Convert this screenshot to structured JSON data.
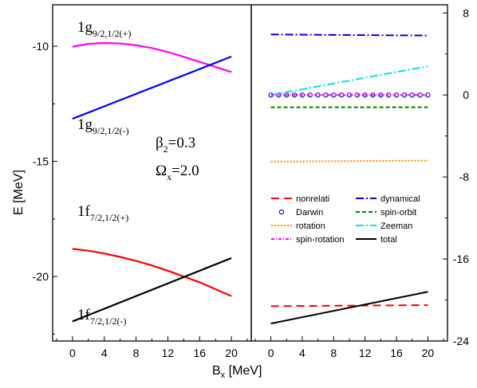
{
  "chart_data": [
    {
      "type": "line",
      "panel": "left",
      "xlabel": "B",
      "xlabel_sub": "x",
      "xlabel_unit": " [MeV]",
      "ylabel": "E [MeV]",
      "xlim": [
        -2.5,
        22.5
      ],
      "ylim": [
        -22.8,
        -8.2
      ],
      "xticks": [
        0,
        4,
        8,
        12,
        16,
        20
      ],
      "yticks": [
        -10,
        -15,
        -20
      ],
      "series": [
        {
          "key": "g_plus",
          "color": "#ff00ff",
          "x": [
            0,
            2,
            4,
            6,
            8,
            10,
            12,
            14,
            16,
            18,
            20
          ],
          "y": [
            -10.02,
            -9.9,
            -9.86,
            -9.88,
            -9.96,
            -10.08,
            -10.25,
            -10.46,
            -10.68,
            -10.9,
            -11.12
          ]
        },
        {
          "key": "g_minus",
          "color": "#0000ff",
          "x": [
            0,
            20
          ],
          "y": [
            -13.15,
            -10.45
          ]
        },
        {
          "key": "f_plus",
          "color": "#ff0000",
          "x": [
            0,
            2,
            4,
            6,
            8,
            10,
            12,
            14,
            16,
            18,
            20
          ],
          "y": [
            -18.8,
            -18.88,
            -19.0,
            -19.15,
            -19.32,
            -19.52,
            -19.75,
            -20.0,
            -20.25,
            -20.55,
            -20.85
          ]
        },
        {
          "key": "f_minus",
          "color": "#000000",
          "x": [
            0,
            20
          ],
          "y": [
            -21.95,
            -19.2
          ]
        }
      ],
      "annotations": {
        "g_plus": {
          "main": "1g",
          "sub": "9/2,1/2(+)"
        },
        "g_minus": {
          "main": "1g",
          "sub": "9/2,1/2(-)"
        },
        "f_plus": {
          "main": "1f",
          "sub": "7/2,1/2(+)"
        },
        "f_minus": {
          "main": "1f",
          "sub": "7/2,1/2(-)"
        },
        "beta": {
          "sym": "β",
          "sub": "2",
          "rest": "=0.3"
        },
        "omega": {
          "sym": "Ω",
          "sub": "x",
          "rest": "=2.0"
        }
      }
    },
    {
      "type": "line",
      "panel": "right",
      "xlim": [
        -2.5,
        22.5
      ],
      "ylim": [
        -24,
        8.8
      ],
      "xticks": [
        0,
        4,
        8,
        12,
        16,
        20
      ],
      "yticks": [
        8,
        0,
        -8,
        -16,
        -24
      ],
      "series": [
        {
          "key": "nonrelati",
          "name": "nonrelati",
          "color": "#ff0000",
          "dash": "10,6",
          "x": [
            0,
            20
          ],
          "y": [
            -20.6,
            -20.5
          ]
        },
        {
          "key": "dynamical",
          "name": "dynamical",
          "color": "#0000cc",
          "dash": "10,3,2,3",
          "x": [
            0,
            20
          ],
          "y": [
            5.9,
            5.8
          ]
        },
        {
          "key": "darwin",
          "name": "Darwin",
          "color": "#0000cc",
          "marker": "circle",
          "x": [
            0,
            1,
            2,
            3,
            4,
            5,
            6,
            7,
            8,
            9,
            10,
            11,
            12,
            13,
            14,
            15,
            16,
            17,
            18,
            19,
            20
          ],
          "y": [
            0,
            0,
            0,
            0,
            0,
            0,
            0,
            0,
            0,
            0,
            0,
            0,
            0,
            0,
            0,
            0,
            0,
            0,
            0,
            0,
            0
          ]
        },
        {
          "key": "spin_orbit",
          "name": "spin-orbit",
          "color": "#008000",
          "dash": "5,3",
          "x": [
            0,
            20
          ],
          "y": [
            -1.2,
            -1.2
          ]
        },
        {
          "key": "rotation",
          "name": "rotation",
          "color": "#ff8c00",
          "dash": "2,2",
          "x": [
            0,
            20
          ],
          "y": [
            -6.5,
            -6.4
          ]
        },
        {
          "key": "zeeman",
          "name": "Zeeman",
          "color": "#00e5e5",
          "dash": "10,3,2,3",
          "x": [
            0,
            20
          ],
          "y": [
            0.0,
            2.8
          ]
        },
        {
          "key": "spin_rotation",
          "name": "spin-rotation",
          "color": "#ff00ff",
          "dash": "4,2,1,2",
          "x": [
            0,
            20
          ],
          "y": [
            0.0,
            0.0
          ]
        },
        {
          "key": "total",
          "name": "total",
          "color": "#000000",
          "x": [
            0,
            20
          ],
          "y": [
            -22.3,
            -19.2
          ]
        }
      ],
      "legend": {
        "rows": [
          [
            "nonrelati",
            "dynamical"
          ],
          [
            "darwin",
            "spin_orbit"
          ],
          [
            "rotation",
            "zeeman"
          ],
          [
            "spin_rotation",
            "total"
          ]
        ]
      }
    }
  ]
}
